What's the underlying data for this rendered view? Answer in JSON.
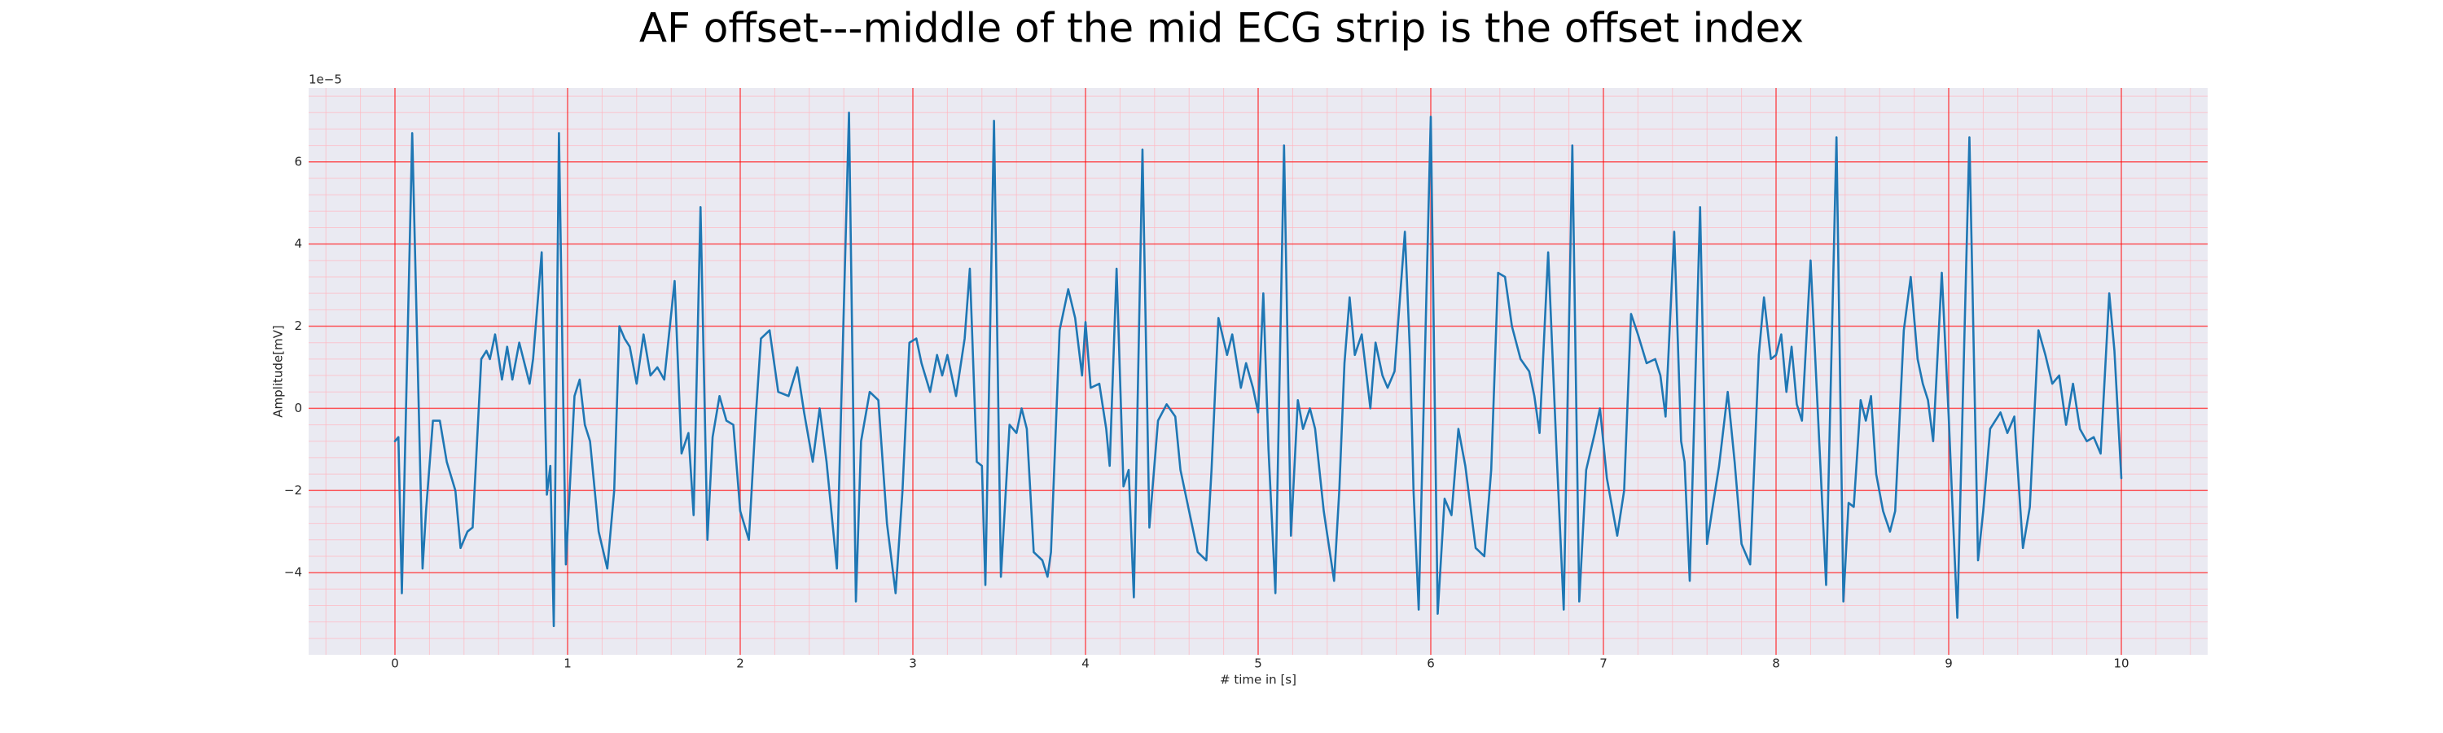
{
  "chart_data": {
    "type": "line",
    "title": "AF offset---middle of the mid ECG strip is the offset index",
    "xlabel": "# time in [s]",
    "ylabel": "Amplitude[mV]",
    "y_offset_text": "1e−5",
    "x": [
      0,
      0.02,
      0.04,
      0.1,
      0.16,
      0.18,
      0.22,
      0.26,
      0.3,
      0.35,
      0.38,
      0.42,
      0.45,
      0.5,
      0.53,
      0.55,
      0.58,
      0.62,
      0.65,
      0.68,
      0.72,
      0.78,
      0.8,
      0.85,
      0.88,
      0.9,
      0.92,
      0.95,
      0.99,
      1.04,
      1.07,
      1.1,
      1.13,
      1.18,
      1.23,
      1.27,
      1.3,
      1.33,
      1.36,
      1.4,
      1.44,
      1.48,
      1.52,
      1.56,
      1.62,
      1.66,
      1.7,
      1.73,
      1.77,
      1.81,
      1.84,
      1.88,
      1.92,
      1.96,
      2,
      2.05,
      2.09,
      2.12,
      2.17,
      2.22,
      2.28,
      2.33,
      2.37,
      2.42,
      2.46,
      2.5,
      2.56,
      2.63,
      2.67,
      2.7,
      2.75,
      2.8,
      2.85,
      2.9,
      2.94,
      2.98,
      3.02,
      3.05,
      3.1,
      3.14,
      3.17,
      3.2,
      3.25,
      3.3,
      3.33,
      3.37,
      3.4,
      3.42,
      3.47,
      3.51,
      3.56,
      3.6,
      3.63,
      3.66,
      3.7,
      3.75,
      3.78,
      3.8,
      3.85,
      3.9,
      3.94,
      3.98,
      4,
      4.03,
      4.08,
      4.12,
      4.14,
      4.18,
      4.22,
      4.25,
      4.28,
      4.33,
      4.37,
      4.42,
      4.47,
      4.52,
      4.55,
      4.6,
      4.65,
      4.7,
      4.73,
      4.77,
      4.82,
      4.85,
      4.9,
      4.93,
      4.97,
      5,
      5.03,
      5.06,
      5.1,
      5.15,
      5.19,
      5.23,
      5.26,
      5.3,
      5.33,
      5.38,
      5.44,
      5.47,
      5.5,
      5.53,
      5.56,
      5.6,
      5.65,
      5.68,
      5.72,
      5.75,
      5.79,
      5.85,
      5.88,
      5.9,
      5.93,
      6,
      6.04,
      6.08,
      6.12,
      6.16,
      6.2,
      6.26,
      6.31,
      6.35,
      6.39,
      6.43,
      6.47,
      6.52,
      6.57,
      6.6,
      6.63,
      6.68,
      6.73,
      6.77,
      6.82,
      6.86,
      6.9,
      6.95,
      6.98,
      7.02,
      7.08,
      7.12,
      7.16,
      7.2,
      7.25,
      7.3,
      7.33,
      7.36,
      7.41,
      7.45,
      7.47,
      7.5,
      7.56,
      7.6,
      7.64,
      7.67,
      7.72,
      7.76,
      7.8,
      7.85,
      7.9,
      7.93,
      7.97,
      8,
      8.03,
      8.06,
      8.09,
      8.12,
      8.15,
      8.2,
      8.25,
      8.29,
      8.35,
      8.39,
      8.42,
      8.45,
      8.49,
      8.52,
      8.55,
      8.58,
      8.62,
      8.66,
      8.69,
      8.74,
      8.78,
      8.82,
      8.85,
      8.88,
      8.91,
      8.96,
      9,
      9.02,
      9.05,
      9.12,
      9.17,
      9.2,
      9.24,
      9.3,
      9.34,
      9.38,
      9.43,
      9.47,
      9.52,
      9.56,
      9.6,
      9.64,
      9.68,
      9.72,
      9.76,
      9.8,
      9.84,
      9.88,
      9.93,
      9.96,
      10
    ],
    "series": [
      {
        "color": "#1f77b4",
        "values": [
          -0.8,
          -0.7,
          -4.5,
          6.7,
          -3.9,
          -2.5,
          -0.3,
          -0.3,
          -1.3,
          -2,
          -3.4,
          -3,
          -2.9,
          1.2,
          1.4,
          1.2,
          1.8,
          0.7,
          1.5,
          0.7,
          1.6,
          0.6,
          1.2,
          3.8,
          -2.1,
          -1.4,
          -5.3,
          6.7,
          -3.8,
          0.3,
          0.7,
          -0.4,
          -0.8,
          -3,
          -3.9,
          -2,
          2,
          1.7,
          1.5,
          0.6,
          1.8,
          0.8,
          1,
          0.7,
          3.1,
          -1.1,
          -0.6,
          -2.6,
          4.9,
          -3.2,
          -0.7,
          0.3,
          -0.3,
          -0.4,
          -2.5,
          -3.2,
          -0.2,
          1.7,
          1.9,
          0.4,
          0.3,
          1,
          -0.1,
          -1.3,
          0,
          -1.3,
          -3.9,
          7.2,
          -4.7,
          -0.8,
          0.4,
          0.2,
          -2.8,
          -4.5,
          -2,
          1.6,
          1.7,
          1.1,
          0.4,
          1.3,
          0.8,
          1.3,
          0.3,
          1.7,
          3.4,
          -1.3,
          -1.4,
          -4.3,
          7,
          -4.1,
          -0.4,
          -0.6,
          0,
          -0.5,
          -3.5,
          -3.7,
          -4.1,
          -3.5,
          1.9,
          2.9,
          2.2,
          0.8,
          2.1,
          0.5,
          0.6,
          -0.5,
          -1.4,
          3.4,
          -1.9,
          -1.5,
          -4.6,
          6.3,
          -2.9,
          -0.3,
          0.1,
          -0.2,
          -1.5,
          -2.5,
          -3.5,
          -3.7,
          -1.5,
          2.2,
          1.3,
          1.8,
          0.5,
          1.1,
          0.5,
          -0.1,
          2.8,
          -1,
          -4.5,
          6.4,
          -3.1,
          0.2,
          -0.5,
          0,
          -0.5,
          -2.5,
          -4.2,
          -2,
          1.1,
          2.7,
          1.3,
          1.8,
          0,
          1.6,
          0.8,
          0.5,
          0.9,
          4.3,
          1.3,
          -2,
          -4.9,
          7.1,
          -5,
          -2.2,
          -2.6,
          -0.5,
          -1.4,
          -3.4,
          -3.6,
          -1.5,
          3.3,
          3.2,
          2,
          1.2,
          0.9,
          0.3,
          -0.6,
          3.8,
          -1.2,
          -4.9,
          6.4,
          -4.7,
          -1.5,
          -0.6,
          0,
          -1.7,
          -3.1,
          -2,
          2.3,
          1.8,
          1.1,
          1.2,
          0.8,
          -0.2,
          4.3,
          -0.8,
          -1.3,
          -4.2,
          4.9,
          -3.3,
          -2.2,
          -1.4,
          0.4,
          -1.3,
          -3.3,
          -3.8,
          1.3,
          2.7,
          1.2,
          1.3,
          1.8,
          0.4,
          1.5,
          0.1,
          -0.3,
          3.6,
          -0.8,
          -4.3,
          6.6,
          -4.7,
          -2.3,
          -2.4,
          0.2,
          -0.3,
          0.3,
          -1.6,
          -2.5,
          -3,
          -2.5,
          1.9,
          3.2,
          1.2,
          0.6,
          0.2,
          -0.8,
          3.3,
          -0.2,
          -2.2,
          -5.1,
          6.6,
          -3.7,
          -2.5,
          -0.5,
          -0.1,
          -0.6,
          -0.2,
          -3.4,
          -2.4,
          1.9,
          1.3,
          0.6,
          0.8,
          -0.4,
          0.6,
          -0.5,
          -0.8,
          -0.7,
          -1.1,
          2.8,
          1.4,
          -1.7
        ]
      }
    ],
    "xlim": [
      -0.5,
      10.5
    ],
    "ylim": [
      -6,
      7.8
    ],
    "xticks": [
      0,
      1,
      2,
      3,
      4,
      5,
      6,
      7,
      8,
      9,
      10
    ],
    "yticks": [
      {
        "value": -4,
        "label": "−4"
      },
      {
        "value": -2,
        "label": "−2"
      },
      0,
      2,
      4,
      6
    ],
    "xminor": [
      -0.4,
      -0.2,
      0,
      0.2,
      0.4,
      0.6,
      0.8,
      1,
      1.2,
      1.4,
      1.6,
      1.8,
      2,
      2.2,
      2.4,
      2.6,
      2.8,
      3,
      3.2,
      3.4,
      3.6,
      3.8,
      4,
      4.2,
      4.4,
      4.6,
      4.8,
      5,
      5.2,
      5.4,
      5.6,
      5.8,
      6,
      6.2,
      6.4,
      6.6,
      6.8,
      7,
      7.2,
      7.4,
      7.6,
      7.8,
      8,
      8.2,
      8.4,
      8.6,
      8.8,
      9,
      9.2,
      9.4,
      9.6,
      9.8,
      10,
      10.2,
      10.4
    ],
    "yminor": [
      -5.6,
      -5.2,
      -4.8,
      -4.4,
      -4,
      -3.6,
      -3.2,
      -2.8,
      -2.4,
      -2,
      -1.6,
      -1.2,
      -0.8,
      -0.4,
      0,
      0.4,
      0.8,
      1.2,
      1.6,
      2,
      2.4,
      2.8,
      3.2,
      3.6,
      4,
      4.4,
      4.8,
      5.2,
      5.6,
      6,
      6.4,
      6.8,
      7.2,
      7.6
    ],
    "grid": true,
    "grid_color": "#ff0000",
    "minor_grid_color": "#ffb6c1",
    "background": "#eaeaf2"
  }
}
